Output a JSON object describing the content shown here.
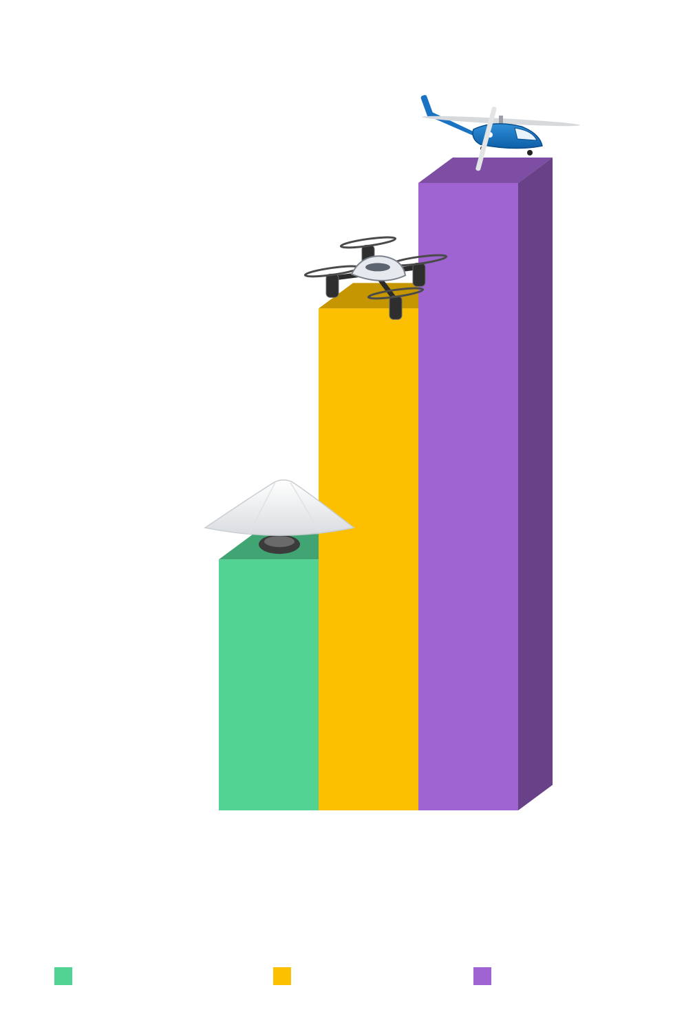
{
  "chart_data": {
    "type": "bar",
    "style": "3d-stepped",
    "title": "",
    "xlabel": "",
    "ylabel": "",
    "ylim": [
      0,
      100
    ],
    "grid": false,
    "legend": "bottom",
    "categories": [
      "",
      "",
      ""
    ],
    "series": [
      {
        "name": "",
        "value": 38,
        "color": "#52D394",
        "icon": "dome-camera-icon"
      },
      {
        "name": "",
        "value": 76,
        "color": "#FDC000",
        "icon": "quadcopter-drone-icon"
      },
      {
        "name": "",
        "value": 95,
        "color": "#A064D2",
        "icon": "helicopter-icon"
      }
    ]
  }
}
